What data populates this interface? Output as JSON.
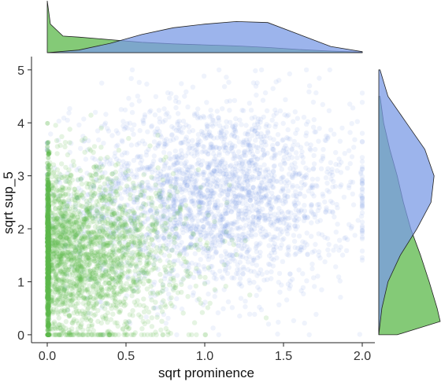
{
  "chart_data": {
    "type": "scatter",
    "title": "",
    "xlabel": "sqrt prominence",
    "ylabel": "sqrt sup_5",
    "xlim": [
      -0.1,
      2.08
    ],
    "ylim": [
      -0.15,
      5.25
    ],
    "x_ticks": [
      0.0,
      0.5,
      1.0,
      1.5,
      2.0
    ],
    "x_tick_labels": [
      "0.0",
      "0.5",
      "1.0",
      "1.5",
      "2.0"
    ],
    "y_ticks": [
      0,
      1,
      2,
      3,
      4,
      5
    ],
    "y_tick_labels": [
      "0",
      "1",
      "2",
      "3",
      "4",
      "5"
    ],
    "grid": false,
    "legend": "none",
    "marginals": "density plots on top (x) and right (y)",
    "colors": {
      "blue": "#7b9be6",
      "green": "#5bb84a"
    },
    "series": [
      {
        "color": "#7b9be6",
        "x_center": 1.05,
        "x_spread": 0.45,
        "x_range": [
          0.0,
          2.0
        ],
        "y_center": 2.6,
        "y_spread": 0.9,
        "y_range": [
          0.0,
          5.0
        ],
        "x_density": {
          "x": [
            0.0,
            0.2,
            0.4,
            0.6,
            0.8,
            1.0,
            1.2,
            1.4,
            1.6,
            1.8,
            2.0
          ],
          "d": [
            0.0,
            0.05,
            0.18,
            0.35,
            0.48,
            0.55,
            0.6,
            0.58,
            0.35,
            0.12,
            0.02
          ]
        },
        "y_density": {
          "y": [
            0.0,
            0.5,
            1.0,
            1.5,
            2.0,
            2.5,
            3.0,
            3.5,
            4.0,
            4.5,
            5.0
          ],
          "d": [
            0.0,
            0.05,
            0.15,
            0.35,
            0.62,
            0.85,
            0.9,
            0.75,
            0.45,
            0.15,
            0.02
          ]
        }
      },
      {
        "color": "#5bb84a",
        "x_center": 0.2,
        "x_spread": 0.35,
        "x_range": [
          0.0,
          2.0
        ],
        "y_center": 1.5,
        "y_spread": 0.8,
        "y_range": [
          0.0,
          4.5
        ],
        "x_density": {
          "x": [
            0.0,
            0.02,
            0.1,
            0.2,
            0.4,
            0.6,
            0.8,
            1.0,
            1.2,
            1.4,
            1.6,
            1.8,
            2.0
          ],
          "d": [
            1.0,
            0.55,
            0.32,
            0.3,
            0.25,
            0.2,
            0.17,
            0.15,
            0.13,
            0.1,
            0.06,
            0.03,
            0.01
          ]
        },
        "y_density": {
          "y": [
            0.0,
            0.25,
            0.5,
            1.0,
            1.5,
            2.0,
            2.5,
            3.0,
            3.5,
            4.0,
            4.5
          ],
          "d": [
            0.3,
            1.0,
            0.95,
            0.82,
            0.68,
            0.52,
            0.4,
            0.3,
            0.18,
            0.08,
            0.02
          ]
        }
      }
    ]
  }
}
